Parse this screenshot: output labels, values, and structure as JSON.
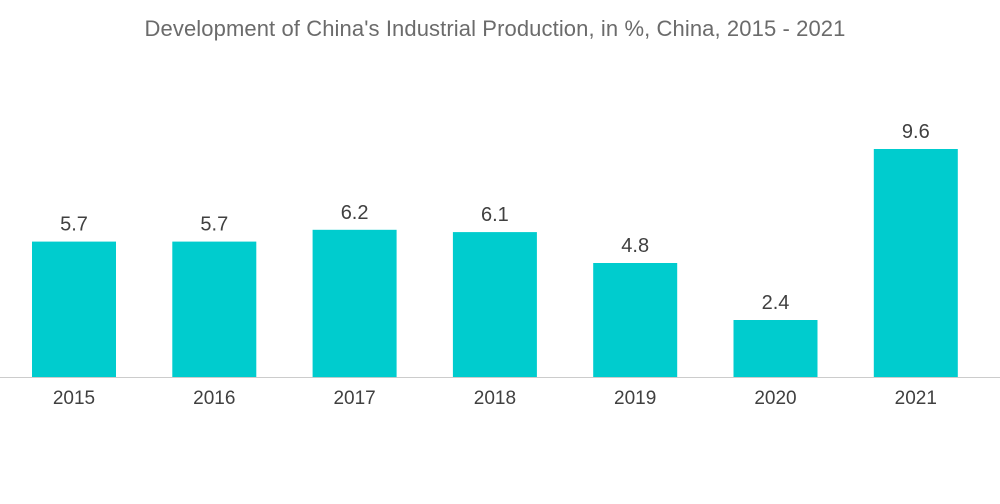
{
  "chart_data": {
    "type": "bar",
    "title": "Development of China's Industrial Production, in %, China, 2015 - 2021",
    "categories": [
      "2015",
      "2016",
      "2017",
      "2018",
      "2019",
      "2020",
      "2021"
    ],
    "values": [
      5.7,
      5.7,
      6.2,
      6.1,
      4.8,
      2.4,
      9.6
    ],
    "value_labels": [
      "5.7",
      "5.7",
      "6.2",
      "6.1",
      "4.8",
      "2.4",
      "9.6"
    ],
    "xlabel": "",
    "ylabel": "",
    "ylim": [
      0,
      9.6
    ],
    "grid": false,
    "legend": "none",
    "colors": {
      "bar": "#00ccce",
      "axis": "#cccccc"
    }
  }
}
